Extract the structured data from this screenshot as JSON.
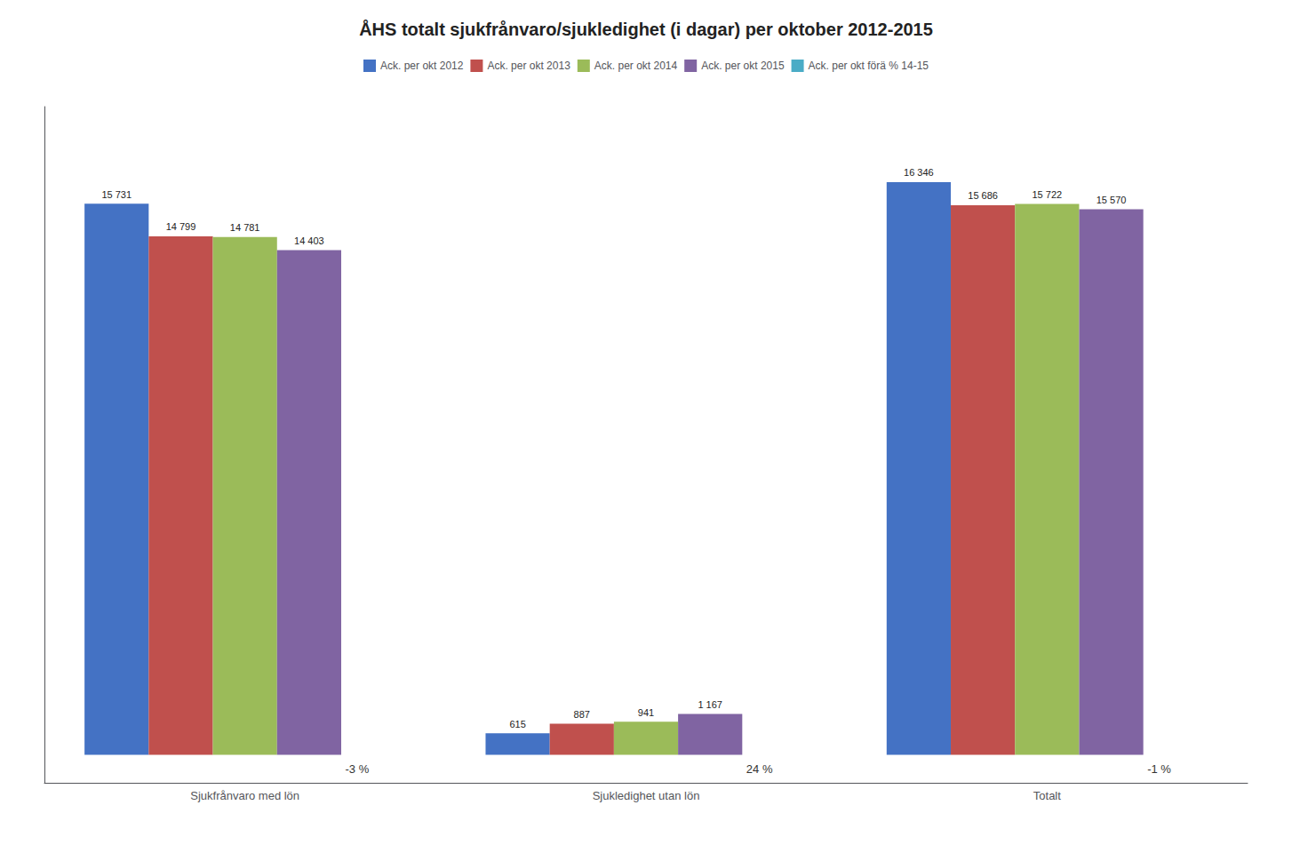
{
  "chart_data": {
    "type": "bar",
    "title": "ÅHS totalt sjukfrånvaro/sjukledighet (i dagar) per oktober 2012-2015",
    "categories": [
      "Sjukfrånvaro med lön",
      "Sjukledighet utan lön",
      "Totalt"
    ],
    "series": [
      {
        "name": "Ack. per okt 2012",
        "color": "#4472C4",
        "values": [
          15731,
          615,
          16346
        ],
        "value_labels": [
          "15 731",
          "615",
          "16 346"
        ]
      },
      {
        "name": "Ack. per okt 2013",
        "color": "#C0504D",
        "values": [
          14799,
          887,
          15686
        ],
        "value_labels": [
          "14 799",
          "887",
          "15 686"
        ]
      },
      {
        "name": "Ack. per okt 2014",
        "color": "#9BBB59",
        "values": [
          14781,
          941,
          15722
        ],
        "value_labels": [
          "14 781",
          "941",
          "15 722"
        ]
      },
      {
        "name": "Ack. per okt 2015",
        "color": "#8064A2",
        "values": [
          14403,
          1167,
          15570
        ],
        "value_labels": [
          "14 403",
          "1 167",
          "15 570"
        ]
      },
      {
        "name": "Ack. per okt förä % 14-15",
        "color": "#4BACC6",
        "values": [
          null,
          null,
          null
        ]
      }
    ],
    "annotations": [
      {
        "text": "-3 %",
        "category": "Sjukfrånvaro med lön"
      },
      {
        "text": "24 %",
        "category": "Sjukledighet utan lön"
      },
      {
        "text": "-1 %",
        "category": "Totalt"
      }
    ],
    "ylim": [
      -800,
      18500
    ],
    "grid": false,
    "legend": "top",
    "data_labels": true,
    "tick_labels": "x"
  }
}
